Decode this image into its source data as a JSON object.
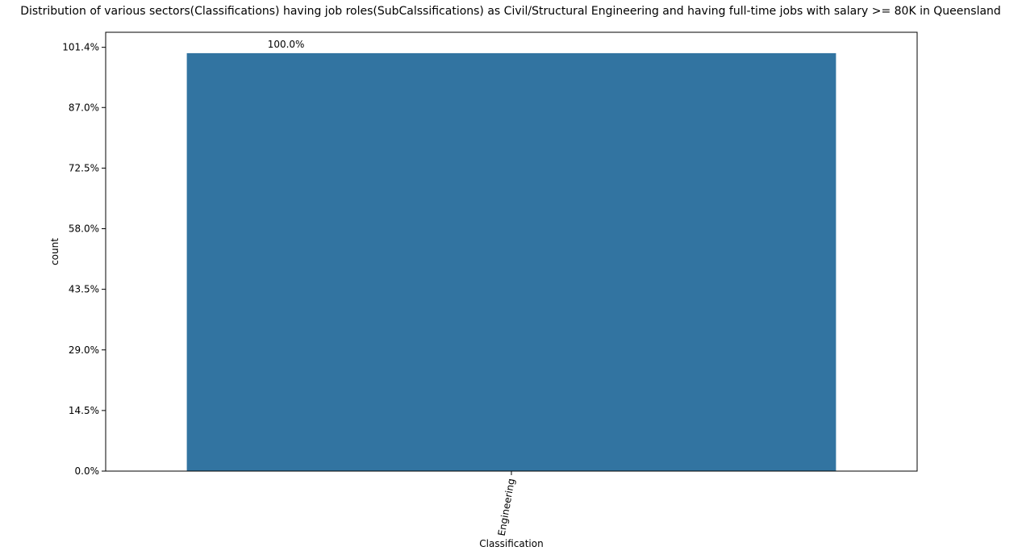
{
  "chart_data": {
    "type": "bar",
    "title": "Distribution of various sectors(Classifications) having job roles(SubCalssifications) as Civil/Structural Engineering and having full-time jobs with salary >= 80K in Queensland",
    "xlabel": "Classification",
    "ylabel": "count",
    "categories": [
      "Engineering"
    ],
    "values": [
      100.0
    ],
    "data_labels": [
      "100.0%"
    ],
    "ylim": [
      0,
      105
    ],
    "yticks": [
      0,
      14.5,
      29.0,
      43.5,
      58.0,
      72.5,
      87.0,
      101.4
    ],
    "ytick_labels": [
      "0.0%",
      "14.5%",
      "29.0%",
      "43.5%",
      "58.0%",
      "72.5%",
      "87.0%",
      "101.4%"
    ],
    "grid": false,
    "bar_color": "#3274a1"
  }
}
